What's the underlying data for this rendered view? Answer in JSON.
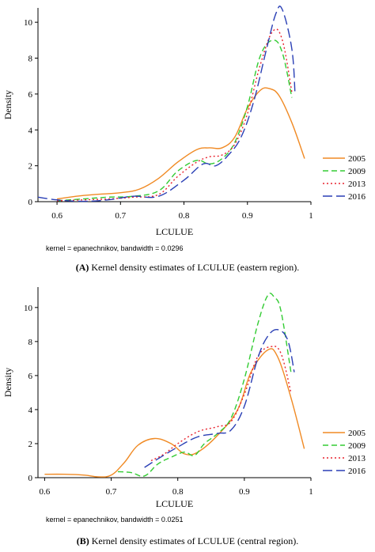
{
  "panels": [
    {
      "caption_bold": "(A)",
      "caption_text": " Kernel density estimates of LCULUE (eastern region).",
      "note": "kernel = epanechnikov, bandwidth = 0.0296"
    },
    {
      "caption_bold": "(B)",
      "caption_text": " Kernel density estimates of LCULUE (central region).",
      "note": "kernel = epanechnikov, bandwidth = 0.0251"
    }
  ],
  "chart_data": [
    {
      "type": "line",
      "xlabel": "LCULUE",
      "ylabel": "Density",
      "xlim": [
        0.57,
        1.0
      ],
      "ylim": [
        0,
        10.8
      ],
      "xticks": [
        "0.6",
        "0.7",
        "0.8",
        "0.9",
        "1"
      ],
      "xtick_values": [
        0.6,
        0.7,
        0.8,
        0.9,
        1.0
      ],
      "yticks": [
        "0",
        "2",
        "4",
        "6",
        "8",
        "10"
      ],
      "ytick_values": [
        0,
        2,
        4,
        6,
        8,
        10
      ],
      "legend_position": "right",
      "series": [
        {
          "name": "2005",
          "color": "#f08a24",
          "dash": "none",
          "x": [
            0.6,
            0.63,
            0.66,
            0.7,
            0.73,
            0.76,
            0.79,
            0.82,
            0.84,
            0.86,
            0.88,
            0.9,
            0.92,
            0.935,
            0.95,
            0.97,
            0.99
          ],
          "y": [
            0.15,
            0.3,
            0.4,
            0.5,
            0.7,
            1.3,
            2.2,
            2.9,
            3.0,
            3.0,
            3.6,
            5.2,
            6.2,
            6.3,
            5.9,
            4.4,
            2.4
          ]
        },
        {
          "name": "2009",
          "color": "#33cc33",
          "dash": "7,4",
          "x": [
            0.6,
            0.64,
            0.68,
            0.72,
            0.76,
            0.79,
            0.82,
            0.84,
            0.86,
            0.88,
            0.9,
            0.92,
            0.94,
            0.955,
            0.97
          ],
          "y": [
            0.05,
            0.15,
            0.25,
            0.3,
            0.6,
            1.7,
            2.3,
            2.1,
            2.4,
            3.3,
            5.3,
            8.1,
            9.0,
            8.3,
            5.8
          ]
        },
        {
          "name": "2013",
          "color": "#e8222e",
          "dash": "2,3",
          "x": [
            0.6,
            0.64,
            0.68,
            0.72,
            0.76,
            0.79,
            0.82,
            0.84,
            0.86,
            0.88,
            0.9,
            0.92,
            0.94,
            0.955,
            0.97
          ],
          "y": [
            0.05,
            0.1,
            0.15,
            0.25,
            0.4,
            1.4,
            2.2,
            2.5,
            2.6,
            3.2,
            4.9,
            7.6,
            9.5,
            9.0,
            6.1
          ]
        },
        {
          "name": "2016",
          "color": "#2a3fb5",
          "dash": "12,5",
          "x": [
            0.57,
            0.6,
            0.64,
            0.68,
            0.72,
            0.76,
            0.8,
            0.83,
            0.85,
            0.87,
            0.89,
            0.91,
            0.93,
            0.945,
            0.955,
            0.97,
            0.975
          ],
          "y": [
            0.25,
            0.1,
            0.02,
            0.1,
            0.3,
            0.3,
            1.2,
            2.1,
            2.0,
            2.6,
            3.6,
            5.6,
            8.5,
            10.5,
            10.7,
            8.5,
            6.0
          ]
        }
      ]
    },
    {
      "type": "line",
      "xlabel": "LCULUE",
      "ylabel": "Density",
      "xlim": [
        0.59,
        1.0
      ],
      "ylim": [
        0,
        11.2
      ],
      "xticks": [
        "0.6",
        "0.7",
        "0.8",
        "0.9",
        "1"
      ],
      "xtick_values": [
        0.6,
        0.7,
        0.8,
        0.9,
        1.0
      ],
      "yticks": [
        "0",
        "2",
        "4",
        "6",
        "8",
        "10"
      ],
      "ytick_values": [
        0,
        2,
        4,
        6,
        8,
        10
      ],
      "legend_position": "right",
      "series": [
        {
          "name": "2005",
          "color": "#f08a24",
          "dash": "none",
          "x": [
            0.6,
            0.63,
            0.66,
            0.68,
            0.7,
            0.72,
            0.74,
            0.765,
            0.79,
            0.81,
            0.83,
            0.86,
            0.89,
            0.91,
            0.935,
            0.95,
            0.97,
            0.99
          ],
          "y": [
            0.2,
            0.2,
            0.15,
            0.05,
            0.15,
            0.9,
            1.9,
            2.3,
            2.0,
            1.4,
            1.5,
            2.5,
            4.0,
            6.2,
            7.5,
            7.1,
            4.7,
            1.7
          ]
        },
        {
          "name": "2009",
          "color": "#33cc33",
          "dash": "7,4",
          "x": [
            0.71,
            0.73,
            0.75,
            0.77,
            0.79,
            0.81,
            0.825,
            0.84,
            0.86,
            0.88,
            0.9,
            0.92,
            0.935,
            0.945,
            0.955,
            0.97
          ],
          "y": [
            0.35,
            0.3,
            0.1,
            0.8,
            1.2,
            1.5,
            1.3,
            2.0,
            2.6,
            3.5,
            5.8,
            9.0,
            10.7,
            10.6,
            9.8,
            6.2
          ]
        },
        {
          "name": "2013",
          "color": "#e8222e",
          "dash": "2,3",
          "x": [
            0.76,
            0.78,
            0.8,
            0.83,
            0.86,
            0.88,
            0.9,
            0.92,
            0.94,
            0.955,
            0.97
          ],
          "y": [
            1.0,
            1.4,
            2.0,
            2.7,
            3.0,
            3.3,
            4.9,
            7.1,
            7.7,
            7.3,
            5.0
          ]
        },
        {
          "name": "2016",
          "color": "#2a3fb5",
          "dash": "12,5",
          "x": [
            0.75,
            0.77,
            0.8,
            0.83,
            0.86,
            0.88,
            0.9,
            0.92,
            0.935,
            0.95,
            0.965,
            0.975
          ],
          "y": [
            0.6,
            1.1,
            1.8,
            2.4,
            2.6,
            2.8,
            4.2,
            7.0,
            8.3,
            8.7,
            8.1,
            6.2
          ]
        }
      ]
    }
  ]
}
